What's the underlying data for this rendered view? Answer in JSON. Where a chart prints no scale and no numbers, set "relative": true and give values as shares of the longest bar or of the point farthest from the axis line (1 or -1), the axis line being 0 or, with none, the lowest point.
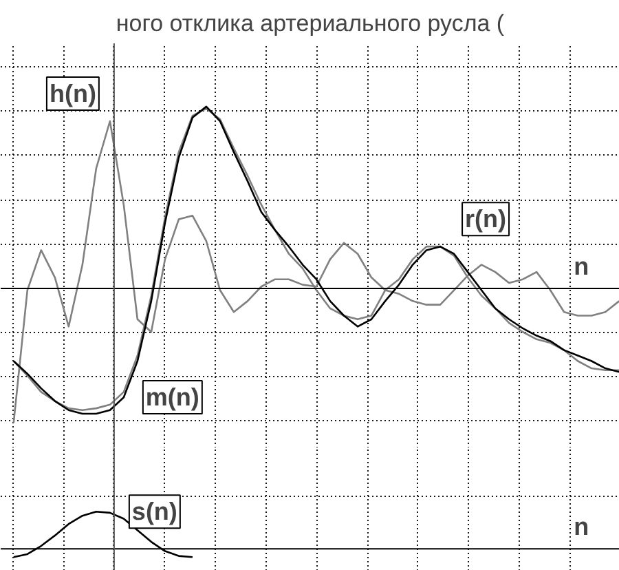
{
  "chart_data": [
    {
      "type": "line",
      "title": "ного отклика артериального русла (",
      "xlabel": "n",
      "relative": true,
      "grid": true,
      "tick_labels": false,
      "categories": [
        null,
        null,
        null,
        null,
        null,
        null,
        null,
        null,
        null,
        null,
        null,
        null,
        null,
        null,
        null,
        null,
        null,
        null,
        null,
        null,
        null,
        null,
        null,
        null,
        null,
        null,
        null,
        null,
        null,
        null,
        null,
        null,
        null,
        null,
        null,
        null,
        null,
        null,
        null,
        null,
        null,
        null,
        null,
        null,
        null
      ],
      "series": [
        {
          "name": "h(n)",
          "color": "#808080",
          "values": [
            -0.74,
            -0.01,
            0.21,
            0.06,
            -0.21,
            0.13,
            0.66,
            0.92,
            0.46,
            -0.17,
            -0.24,
            0.16,
            0.38,
            0.4,
            0.26,
            -0.01,
            -0.13,
            -0.07,
            0.01,
            0.05,
            0.05,
            0.02,
            0.01,
            0.16,
            0.25,
            0.19,
            0.06,
            -0.01,
            -0.03,
            -0.07,
            -0.09,
            -0.09,
            -0.01,
            0.07,
            0.13,
            0.09,
            0.03,
            0.05,
            0.09,
            -0.01,
            -0.13,
            -0.15,
            -0.15,
            -0.13,
            -0.07
          ]
        },
        {
          "name": "r(n)",
          "color": "#808080",
          "values": [
            -0.4,
            -0.48,
            -0.57,
            -0.62,
            -0.66,
            -0.67,
            -0.66,
            -0.64,
            -0.57,
            -0.37,
            -0.04,
            0.39,
            0.75,
            0.95,
            0.99,
            0.93,
            0.77,
            0.62,
            0.46,
            0.32,
            0.19,
            0.11,
            -0.01,
            -0.11,
            -0.15,
            -0.17,
            -0.15,
            -0.01,
            0.05,
            0.16,
            0.23,
            0.23,
            0.18,
            0.06,
            -0.04,
            -0.11,
            -0.19,
            -0.24,
            -0.28,
            -0.3,
            -0.34,
            -0.4,
            -0.44,
            -0.45,
            -0.45
          ]
        },
        {
          "name": "m(n)",
          "color": "#000000",
          "values": [
            -0.4,
            -0.47,
            -0.55,
            -0.62,
            -0.67,
            -0.69,
            -0.69,
            -0.67,
            -0.6,
            -0.4,
            -0.07,
            0.36,
            0.72,
            0.94,
            1.0,
            0.92,
            0.75,
            0.59,
            0.42,
            0.32,
            0.23,
            0.13,
            0.05,
            -0.07,
            -0.15,
            -0.21,
            -0.17,
            -0.07,
            0.02,
            0.13,
            0.21,
            0.23,
            0.19,
            0.09,
            -0.01,
            -0.11,
            -0.17,
            -0.22,
            -0.26,
            -0.29,
            -0.34,
            -0.37,
            -0.4,
            -0.44,
            -0.46
          ]
        }
      ]
    },
    {
      "type": "line",
      "xlabel": "n",
      "relative": true,
      "grid": true,
      "tick_labels": false,
      "categories": [
        null,
        null,
        null,
        null,
        null,
        null,
        null,
        null,
        null,
        null,
        null,
        null,
        null,
        null,
        null,
        null,
        null,
        null,
        null,
        null,
        null,
        null,
        null,
        null,
        null,
        null,
        null,
        null,
        null,
        null,
        null,
        null,
        null,
        null,
        null,
        null,
        null,
        null,
        null,
        null,
        null,
        null,
        null,
        null,
        null
      ],
      "series": [
        {
          "name": "s(n)",
          "color": "#000000",
          "values": [
            -0.22,
            -0.14,
            0.08,
            0.36,
            0.67,
            0.89,
            1.0,
            0.97,
            0.81,
            0.5,
            0.19,
            -0.06,
            -0.19,
            -0.22,
            null,
            null,
            null,
            null,
            null,
            null,
            null,
            null,
            null,
            null,
            null,
            null,
            null,
            null,
            null,
            null,
            null,
            null,
            null,
            null,
            null,
            null,
            null,
            null,
            null,
            null,
            null,
            null,
            null,
            null,
            null
          ]
        }
      ]
    }
  ]
}
